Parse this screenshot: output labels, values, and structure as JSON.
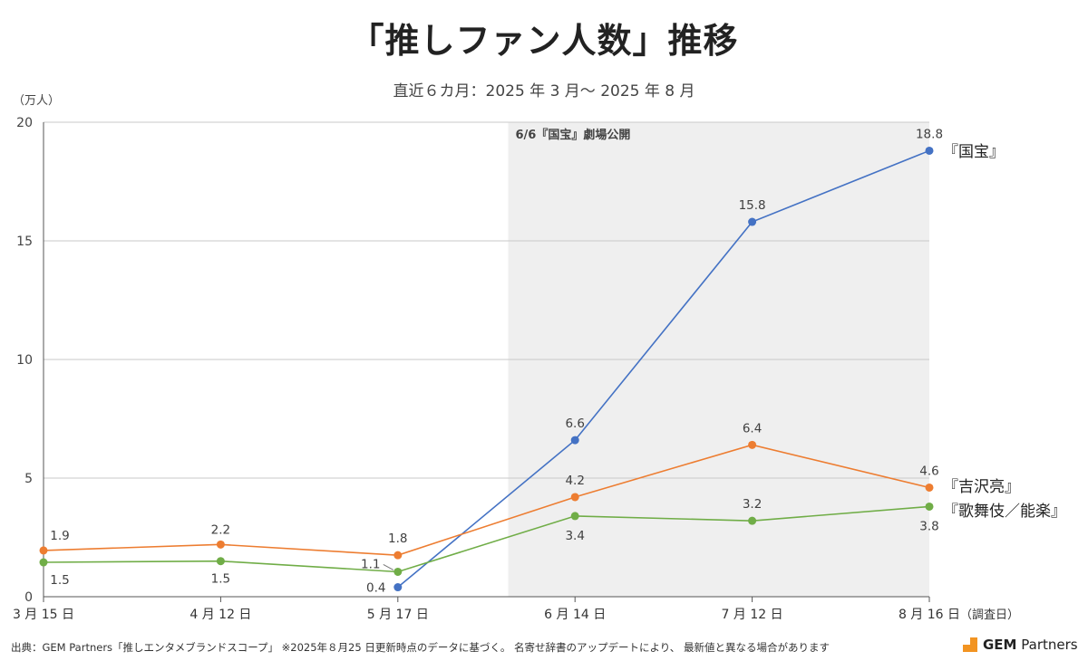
{
  "title": "「推しファン人数」推移",
  "subtitle": "直近６カ月：2025 年 3 月～ 2025 年 8 月",
  "source": "出典：GEM Partners「推しエンタメブランドスコープ」 ※2025年８月25 日更新時点のデータに基づく。 名寄せ辞書のアップデートにより、 最新値と異なる場合があります",
  "logo": {
    "bold": "GEM",
    "rest": " Partners",
    "color": "#f29422"
  },
  "chart_data": {
    "type": "line",
    "y_unit_label": "（万人）",
    "ylim": [
      0,
      20
    ],
    "y_ticks": [
      "0",
      "5",
      "10",
      "15",
      "20"
    ],
    "grid": true,
    "categories": [
      "3 月 15 日",
      "4 月 12 日",
      "5 月 17 日",
      "6 月 14 日",
      "7 月 12 日",
      "8 月 16 日"
    ],
    "x_axis_note": "（調査日）",
    "annotation": "6/6『国宝』劇場公開",
    "series": [
      {
        "name": "『国宝』",
        "color": "#4472c4",
        "values": [
          null,
          null,
          0.4,
          6.6,
          15.8,
          18.8
        ],
        "labels": [
          "",
          "",
          "0.4",
          "6.6",
          "15.8",
          "18.8"
        ]
      },
      {
        "name": "『吉沢亮』",
        "color": "#ed7d31",
        "values": [
          1.95,
          2.2,
          1.75,
          4.2,
          6.4,
          4.6
        ],
        "labels": [
          "1.9",
          "2.2",
          "1.8",
          "4.2",
          "6.4",
          "4.6"
        ]
      },
      {
        "name": "『歌舞伎／能楽』",
        "color": "#70ad47",
        "values": [
          1.45,
          1.5,
          1.05,
          3.4,
          3.2,
          3.8
        ],
        "labels": [
          "1.5",
          "1.5",
          "1.1",
          "3.4",
          "3.2",
          "3.8"
        ]
      }
    ]
  }
}
